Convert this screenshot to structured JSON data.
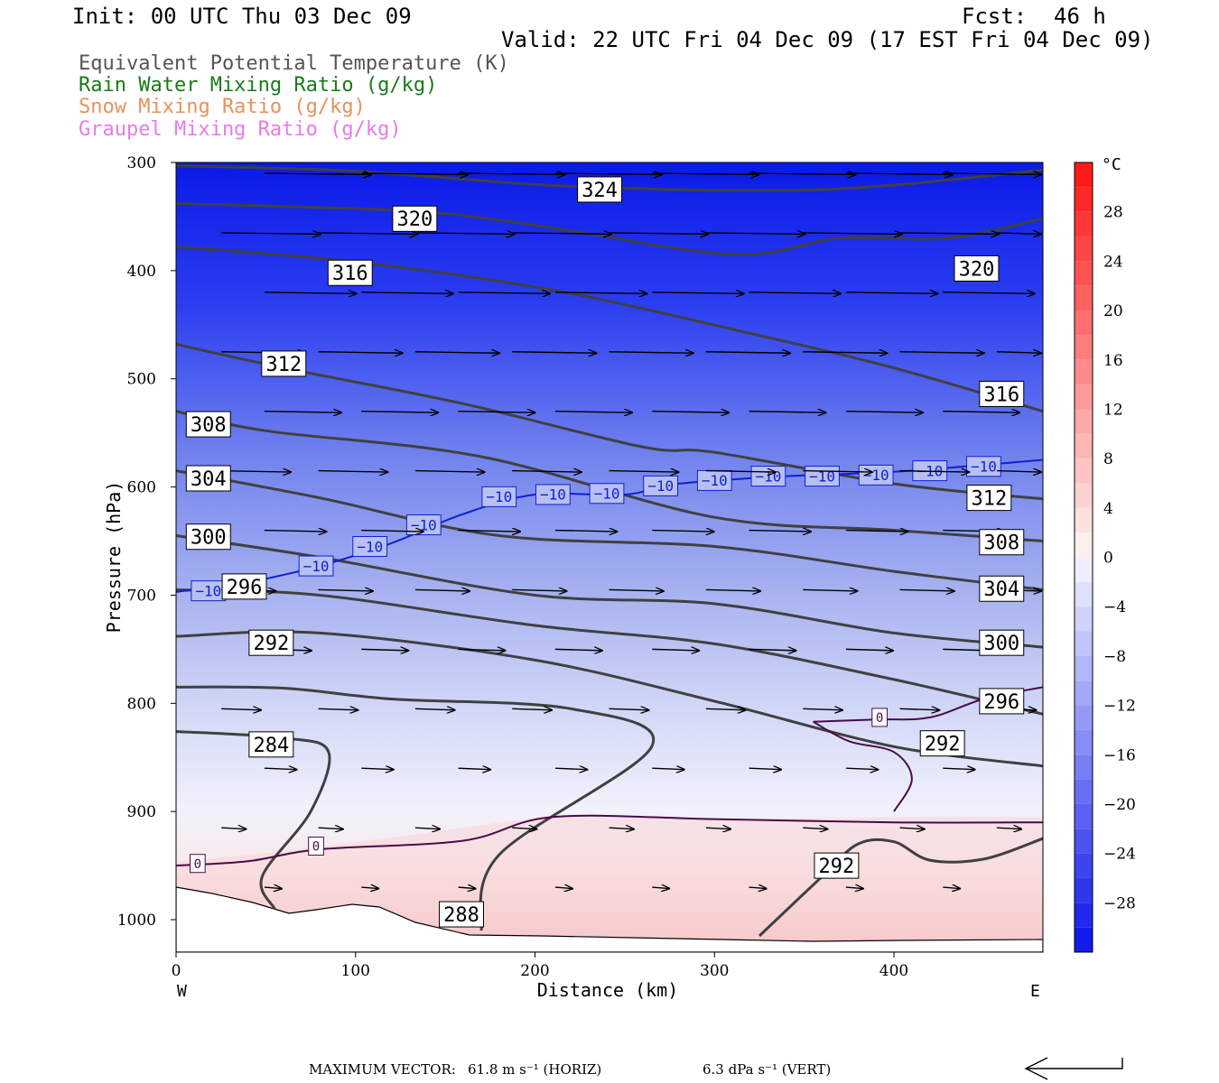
{
  "header": {
    "init": "Init: 00 UTC Thu 03 Dec 09",
    "fcst_label": "Fcst:",
    "fcst_value": "46 h",
    "valid": "Valid: 22 UTC Fri 04 Dec 09 (17 EST Fri 04 Dec 09)"
  },
  "legend": [
    {
      "text": "Equivalent Potential Temperature (K)",
      "color": "#555555"
    },
    {
      "text": "Rain Water Mixing Ratio (g/kg)",
      "color": "#1a7a1a"
    },
    {
      "text": "Snow Mixing Ratio (g/kg)",
      "color": "#e8925a"
    },
    {
      "text": "Graupel Mixing Ratio (g/kg)",
      "color": "#e87ae8"
    }
  ],
  "footer": {
    "max_vector_label": "MAXIMUM VECTOR:",
    "horiz": "61.8 m s⁻¹ (HORIZ)",
    "vert": "6.3 dPa s⁻¹ (VERT)"
  },
  "chart_data": {
    "type": "cross-section",
    "xlabel": "Distance (km)",
    "ylabel": "Pressure (hPa)",
    "xlim": [
      0,
      483
    ],
    "ylim": [
      1030,
      300
    ],
    "x_ticks": [
      0,
      100,
      200,
      300,
      400
    ],
    "y_ticks": [
      300,
      400,
      500,
      600,
      700,
      800,
      900,
      1000
    ],
    "x_end_labels": {
      "left": "W",
      "right": "E"
    },
    "colorbar": {
      "unit": "°C",
      "tick_labels": [
        "28",
        "24",
        "20",
        "16",
        "12",
        "8",
        "4",
        "0",
        "−4",
        "−8",
        "−12",
        "−16",
        "−20",
        "−24",
        "−28"
      ],
      "levels": [
        -32,
        -30,
        -28,
        -26,
        -24,
        -22,
        -20,
        -18,
        -16,
        -14,
        -12,
        -10,
        -8,
        -6,
        -4,
        -2,
        0,
        2,
        4,
        6,
        8,
        10,
        12,
        14,
        16,
        18,
        20,
        22,
        24,
        26,
        28,
        30,
        32
      ]
    },
    "theta_e_contours": [
      {
        "label": "324",
        "points": [
          [
            0,
            303
          ],
          [
            100,
            308
          ],
          [
            220,
            322
          ],
          [
            360,
            325
          ],
          [
            483,
            307
          ]
        ],
        "label_at": [
          236,
          325
        ]
      },
      {
        "label": "320",
        "points": [
          [
            0,
            338
          ],
          [
            130,
            345
          ],
          [
            200,
            358
          ],
          [
            310,
            385
          ],
          [
            370,
            370
          ],
          [
            430,
            370
          ],
          [
            483,
            352
          ]
        ],
        "label_at": [
          133,
          352
        ],
        "label2": "320",
        "label2_at": [
          446,
          398
        ]
      },
      {
        "label": "316",
        "points": [
          [
            0,
            378
          ],
          [
            100,
            392
          ],
          [
            210,
            418
          ],
          [
            320,
            458
          ],
          [
            400,
            490
          ],
          [
            483,
            530
          ]
        ],
        "label_at": [
          97,
          402
        ],
        "label2": "316",
        "label2_at": [
          460,
          514
        ]
      },
      {
        "label": "312",
        "points": [
          [
            0,
            468
          ],
          [
            60,
            490
          ],
          [
            160,
            523
          ],
          [
            260,
            563
          ],
          [
            300,
            568
          ],
          [
            400,
            597
          ],
          [
            483,
            611
          ]
        ],
        "label_at": [
          60,
          486
        ],
        "label2": "312",
        "label2_at": [
          453,
          610
        ]
      },
      {
        "label": "308",
        "points": [
          [
            0,
            530
          ],
          [
            50,
            548
          ],
          [
            170,
            572
          ],
          [
            300,
            628
          ],
          [
            400,
            640
          ],
          [
            483,
            650
          ]
        ],
        "label_at": [
          18,
          542
        ],
        "label2": "308",
        "label2_at": [
          460,
          651
        ]
      },
      {
        "label": "304",
        "points": [
          [
            0,
            585
          ],
          [
            80,
            610
          ],
          [
            180,
            645
          ],
          [
            300,
            655
          ],
          [
            400,
            678
          ],
          [
            483,
            695
          ]
        ],
        "label_at": [
          18,
          592
        ],
        "label2": "304",
        "label2_at": [
          460,
          694
        ]
      },
      {
        "label": "300",
        "points": [
          [
            0,
            645
          ],
          [
            80,
            665
          ],
          [
            200,
            700
          ],
          [
            300,
            708
          ],
          [
            400,
            735
          ],
          [
            483,
            748
          ]
        ],
        "label_at": [
          18,
          646
        ],
        "label2": "300",
        "label2_at": [
          460,
          744
        ]
      },
      {
        "label": "296",
        "points": [
          [
            0,
            695
          ],
          [
            80,
            700
          ],
          [
            200,
            728
          ],
          [
            300,
            745
          ],
          [
            400,
            778
          ],
          [
            483,
            810
          ]
        ],
        "label_at": [
          38,
          692
        ],
        "label2": "296",
        "label2_at": [
          460,
          798
        ]
      },
      {
        "label": "292",
        "points": [
          [
            0,
            738
          ],
          [
            80,
            735
          ],
          [
            200,
            760
          ],
          [
            300,
            798
          ],
          [
            400,
            840
          ],
          [
            483,
            858
          ]
        ],
        "label_at": [
          53,
          744
        ],
        "label2": "292",
        "label2_at": [
          427,
          837
        ]
      },
      {
        "label": "288",
        "points": [
          [
            0,
            785
          ],
          [
            60,
            786
          ],
          [
            120,
            796
          ],
          [
            220,
            805
          ],
          [
            265,
            840
          ],
          [
            180,
            940
          ],
          [
            170,
            1010
          ]
        ],
        "label_at": [
          159,
          995
        ]
      },
      {
        "label": "284",
        "points": [
          [
            0,
            826
          ],
          [
            60,
            832
          ],
          [
            85,
            845
          ],
          [
            75,
            900
          ],
          [
            48,
            960
          ],
          [
            55,
            990
          ]
        ],
        "label_at": [
          53,
          838
        ]
      },
      {
        "label": "292",
        "points": [
          [
            325,
            1015
          ],
          [
            360,
            960
          ],
          [
            380,
            930
          ],
          [
            400,
            928
          ],
          [
            420,
            945
          ],
          [
            450,
            944
          ],
          [
            483,
            925
          ]
        ],
        "label_at": [
          368,
          950
        ]
      }
    ],
    "isotherm_minus10": {
      "label": "−10",
      "points": [
        [
          0,
          697
        ],
        [
          40,
          688
        ],
        [
          80,
          673
        ],
        [
          120,
          652
        ],
        [
          160,
          625
        ],
        [
          200,
          607
        ],
        [
          250,
          607
        ],
        [
          280,
          597
        ],
        [
          340,
          590
        ],
        [
          400,
          586
        ],
        [
          483,
          575
        ]
      ],
      "labels_at": [
        [
          18,
          696
        ],
        [
          78,
          673
        ],
        [
          108,
          655
        ],
        [
          138,
          635
        ],
        [
          180,
          609
        ],
        [
          210,
          607
        ],
        [
          240,
          606
        ],
        [
          270,
          599
        ],
        [
          300,
          594
        ],
        [
          330,
          590
        ],
        [
          360,
          590
        ],
        [
          390,
          589
        ],
        [
          420,
          585
        ],
        [
          450,
          581
        ]
      ]
    },
    "isotherm_zero": {
      "label": "0",
      "points_lower": [
        [
          0,
          950
        ],
        [
          40,
          946
        ],
        [
          80,
          935
        ],
        [
          160,
          927
        ],
        [
          210,
          905
        ],
        [
          300,
          907
        ],
        [
          400,
          910
        ],
        [
          483,
          910
        ]
      ],
      "points_upper": [
        [
          355,
          817
        ],
        [
          390,
          815
        ],
        [
          420,
          813
        ],
        [
          450,
          796
        ],
        [
          483,
          785
        ]
      ],
      "points_loop": [
        [
          355,
          817
        ],
        [
          375,
          835
        ],
        [
          400,
          845
        ],
        [
          410,
          870
        ],
        [
          400,
          900
        ]
      ],
      "labels_at": [
        [
          12,
          948
        ],
        [
          78,
          932
        ],
        [
          392,
          813
        ]
      ]
    },
    "wind_vectors": "vectors pointing east; strongest aloft (~60 m/s) weakening toward surface"
  }
}
